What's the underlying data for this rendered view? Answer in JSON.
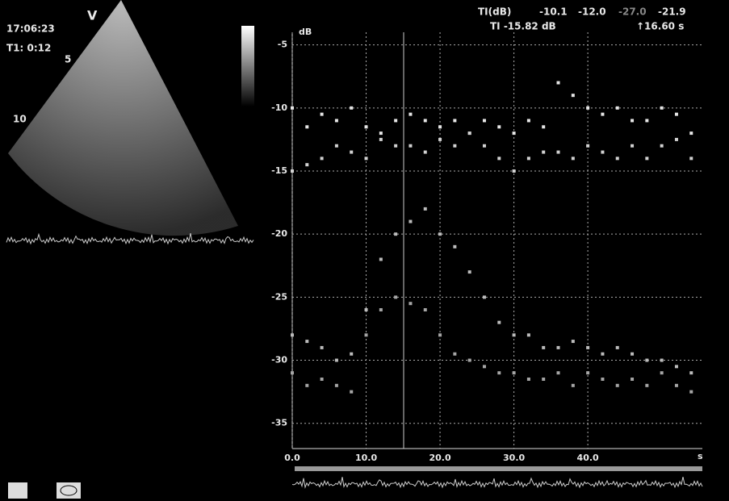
{
  "header": {
    "time": "17:06:23",
    "mode": "V",
    "timer": "T1: 0:12",
    "depth_5": "5",
    "depth_10": "10"
  },
  "readout": {
    "label": "TI(dB)",
    "values": [
      "-10.1",
      "-12.0",
      "-27.0",
      "-21.9"
    ],
    "ti": "TI -15.82 dB",
    "cursor": "↑16.60 s"
  },
  "chart_data": {
    "type": "scatter",
    "y_label": "dB",
    "x_label": "s",
    "x": [
      0,
      2,
      4,
      6,
      8,
      10,
      12,
      14,
      16,
      18,
      20,
      22,
      24,
      26,
      28,
      30,
      32,
      34,
      36,
      38,
      40,
      42,
      44,
      46,
      48,
      50,
      52,
      54
    ],
    "series": [
      {
        "color": "#e6e6e6",
        "values": [
          -10,
          -11.5,
          -10.5,
          -11,
          -10,
          -11.5,
          -12,
          -11,
          -10.5,
          -11,
          -11.5,
          -11,
          -12,
          -11,
          -11.5,
          -12,
          -11,
          -11.5,
          -8,
          -9,
          -10,
          -10.5,
          -10,
          -11,
          -11,
          -10,
          -10.5,
          -12
        ]
      },
      {
        "color": "#d2d2d2",
        "values": [
          -15,
          -14.5,
          -14,
          -13,
          -13.5,
          -14,
          -12.5,
          -13,
          -13,
          -13.5,
          -12.5,
          -13,
          -12,
          -13,
          -14,
          -15,
          -14,
          -13.5,
          -13.5,
          -14,
          -13,
          -13.5,
          -14,
          -13,
          -14,
          -13,
          -12.5,
          -14
        ]
      },
      {
        "color": "#bcbcbc",
        "values": [
          -28,
          -28.5,
          -29,
          -30,
          -29.5,
          -26,
          -22,
          -20,
          -19,
          -18,
          -20,
          -21,
          -23,
          -25,
          -27,
          -28,
          -28,
          -29,
          -29,
          -28.5,
          -29,
          -29.5,
          -29,
          -29.5,
          -30,
          -30,
          -30.5,
          -31
        ]
      },
      {
        "color": "#a6a6a6",
        "values": [
          -31,
          -32,
          -31.5,
          -32,
          -32.5,
          -28,
          -26,
          -25,
          -25.5,
          -26,
          -28,
          -29.5,
          -30,
          -30.5,
          -31,
          -31,
          -31.5,
          -31.5,
          -31,
          -32,
          -31,
          -31.5,
          -32,
          -31.5,
          -32,
          -31,
          -32,
          -32.5
        ]
      }
    ],
    "xlim": [
      0,
      55.5
    ],
    "ylim": [
      -37,
      -4
    ],
    "xticks": [
      {
        "value": 0,
        "label": "0.0"
      },
      {
        "value": 10,
        "label": "10.0"
      },
      {
        "value": 20,
        "label": "20.0"
      },
      {
        "value": 30,
        "label": "30.0"
      },
      {
        "value": 40,
        "label": "40.0"
      }
    ],
    "yticks": [
      -5,
      -10,
      -15,
      -20,
      -25,
      -30,
      -35
    ],
    "grid": true
  }
}
